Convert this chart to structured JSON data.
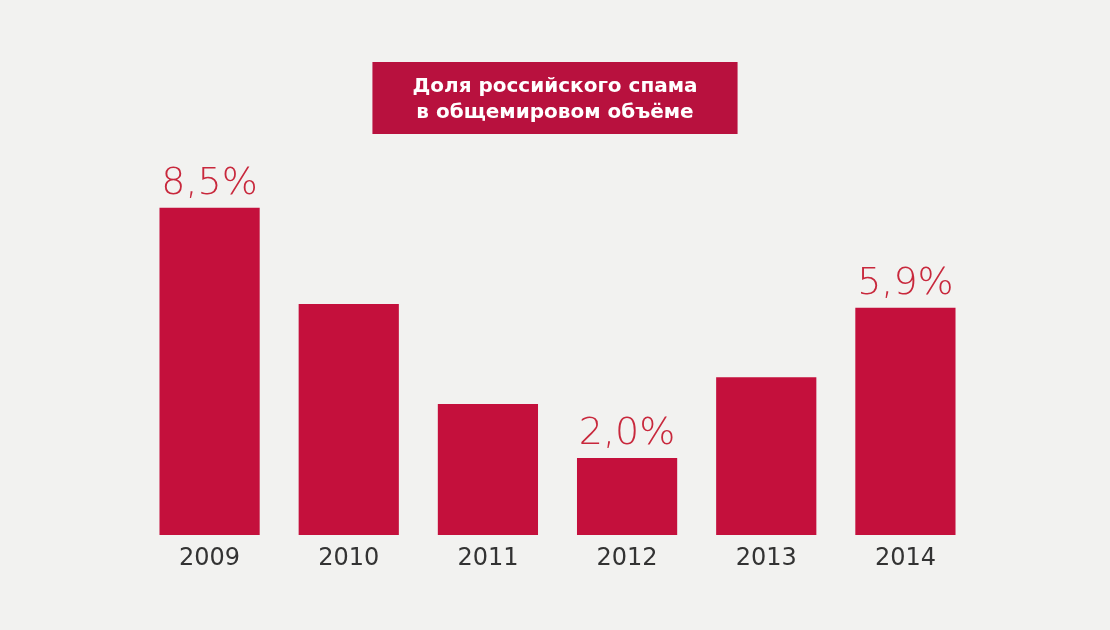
{
  "chart_data": {
    "type": "bar",
    "title": "Доля российского спама\nв общемировом объёме",
    "categories": [
      "2009",
      "2010",
      "2011",
      "2012",
      "2013",
      "2014"
    ],
    "values": [
      8.5,
      6.0,
      3.4,
      2.0,
      4.1,
      5.9
    ],
    "value_labels": [
      "8,5%",
      null,
      null,
      "2,0%",
      null,
      "5,9%"
    ],
    "color": "#c4103c",
    "grid": false
  }
}
